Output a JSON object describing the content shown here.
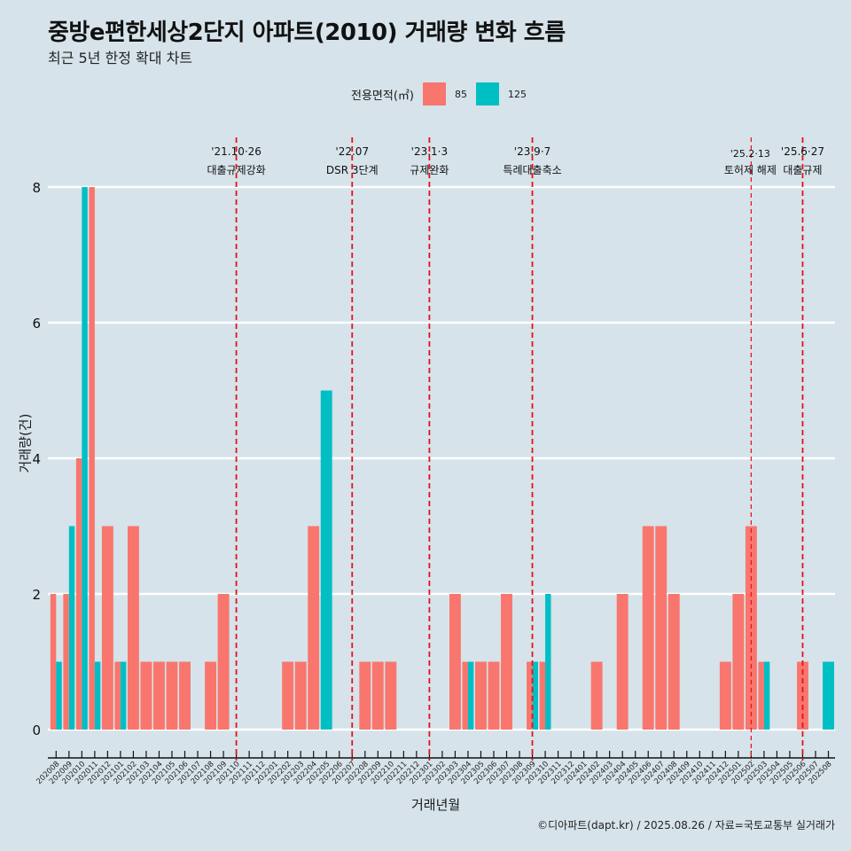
{
  "header": {
    "title": "중방e편한세상2단지 아파트(2010) 거래량 변화 흐름",
    "subtitle": "최근 5년 한정 확대 차트"
  },
  "legend": {
    "title": "전용면적(㎡)",
    "items": [
      {
        "label": "85",
        "color": "#f8766d"
      },
      {
        "label": "125",
        "color": "#00bfc4"
      }
    ]
  },
  "caption": "©디아파트(dapt.kr) / 2025.08.26 / 자료=국토교통부 실거래가",
  "chart_data": {
    "type": "bar",
    "title": "중방e편한세상2단지 아파트(2010) 거래량 변화 흐름",
    "subtitle": "최근 5년 한정 확대 차트",
    "xlabel": "거래년월",
    "ylabel": "거래량(건)",
    "ylim": [
      0,
      8
    ],
    "yticks": [
      0,
      2,
      4,
      6,
      8
    ],
    "grid": "horizontal",
    "legend_position": "top",
    "categories": [
      "202008",
      "202009",
      "202010",
      "202011",
      "202012",
      "202101",
      "202102",
      "202103",
      "202104",
      "202105",
      "202106",
      "202107",
      "202108",
      "202109",
      "202110",
      "202111",
      "202112",
      "202201",
      "202202",
      "202203",
      "202204",
      "202205",
      "202206",
      "202207",
      "202208",
      "202209",
      "202210",
      "202211",
      "202212",
      "202301",
      "202302",
      "202303",
      "202304",
      "202305",
      "202306",
      "202307",
      "202308",
      "202309",
      "202310",
      "202311",
      "202312",
      "202401",
      "202402",
      "202403",
      "202404",
      "202405",
      "202406",
      "202407",
      "202408",
      "202409",
      "202410",
      "202411",
      "202412",
      "202501",
      "202502",
      "202503",
      "202504",
      "202505",
      "202506",
      "202507",
      "202508"
    ],
    "series": [
      {
        "name": "85",
        "color": "#f8766d",
        "values": [
          2,
          2,
          4,
          8,
          3,
          1,
          3,
          1,
          1,
          1,
          1,
          0,
          1,
          2,
          0,
          0,
          0,
          0,
          1,
          1,
          3,
          0,
          0,
          0,
          1,
          1,
          1,
          0,
          0,
          0,
          0,
          2,
          1,
          1,
          1,
          2,
          0,
          1,
          1,
          0,
          0,
          0,
          1,
          0,
          2,
          0,
          3,
          3,
          2,
          0,
          0,
          0,
          1,
          2,
          3,
          1,
          0,
          0,
          1,
          0,
          0
        ]
      },
      {
        "name": "125",
        "color": "#00bfc4",
        "values": [
          1,
          3,
          8,
          1,
          0,
          1,
          0,
          0,
          0,
          0,
          0,
          0,
          0,
          0,
          0,
          0,
          0,
          0,
          0,
          0,
          0,
          5,
          0,
          0,
          0,
          0,
          0,
          0,
          0,
          0,
          0,
          0,
          1,
          0,
          0,
          0,
          0,
          1,
          2,
          0,
          0,
          0,
          0,
          0,
          0,
          0,
          0,
          0,
          0,
          0,
          0,
          0,
          0,
          0,
          0,
          1,
          0,
          0,
          0,
          0,
          1
        ]
      }
    ],
    "annotations": [
      {
        "month": "202110",
        "date": "'21.10·26",
        "label": "대출규제강화",
        "style": "thick"
      },
      {
        "month": "202207",
        "date": "'22.07",
        "label": "DSR 3단계",
        "style": "thick"
      },
      {
        "month": "202301",
        "date": "'23.1·3",
        "label": "규제완화",
        "style": "thick"
      },
      {
        "month": "202309",
        "date": "'23.9·7",
        "label": "특례대출축소",
        "style": "thick"
      },
      {
        "month": "202502",
        "date": "'25.2·13",
        "label": "토허제 해제",
        "style": "thin"
      },
      {
        "month": "202506",
        "date": "'25.6·27",
        "label": "대출규제",
        "style": "thick"
      }
    ],
    "annotation_color": "#e8101a"
  }
}
